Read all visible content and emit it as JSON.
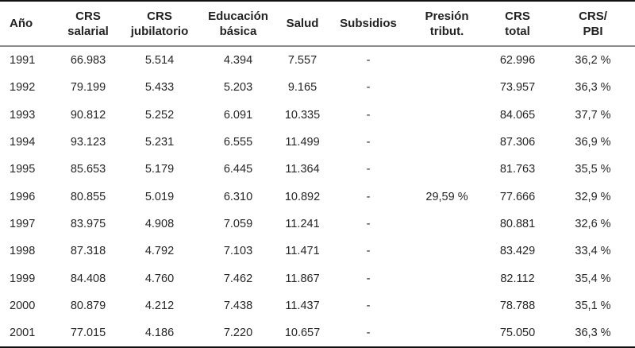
{
  "table": {
    "headers": [
      {
        "line1": "Año",
        "line2": ""
      },
      {
        "line1": "CRS",
        "line2": "salarial"
      },
      {
        "line1": "CRS",
        "line2": "jubilatorio"
      },
      {
        "line1": "Educación",
        "line2": "básica"
      },
      {
        "line1": "Salud",
        "line2": ""
      },
      {
        "line1": "Subsidios",
        "line2": ""
      },
      {
        "line1": "Presión",
        "line2": "tribut."
      },
      {
        "line1": "CRS",
        "line2": "total"
      },
      {
        "line1": "CRS/",
        "line2": "PBI"
      }
    ],
    "rows": [
      [
        "1991",
        "66.983",
        "5.514",
        "4.394",
        "7.557",
        "-",
        "",
        "62.996",
        "36,2 %"
      ],
      [
        "1992",
        "79.199",
        "5.433",
        "5.203",
        "9.165",
        "-",
        "",
        "73.957",
        "36,3 %"
      ],
      [
        "1993",
        "90.812",
        "5.252",
        "6.091",
        "10.335",
        "-",
        "",
        "84.065",
        "37,7 %"
      ],
      [
        "1994",
        "93.123",
        "5.231",
        "6.555",
        "11.499",
        "-",
        "",
        "87.306",
        "36,9 %"
      ],
      [
        "1995",
        "85.653",
        "5.179",
        "6.445",
        "11.364",
        "-",
        "",
        "81.763",
        "35,5 %"
      ],
      [
        "1996",
        "80.855",
        "5.019",
        "6.310",
        "10.892",
        "-",
        "29,59 %",
        "77.666",
        "32,9 %"
      ],
      [
        "1997",
        "83.975",
        "4.908",
        "7.059",
        "11.241",
        "-",
        "",
        "80.881",
        "32,6 %"
      ],
      [
        "1998",
        "87.318",
        "4.792",
        "7.103",
        "11.471",
        "-",
        "",
        "83.429",
        "33,4 %"
      ],
      [
        "1999",
        "84.408",
        "4.760",
        "7.462",
        "11.867",
        "-",
        "",
        "82.112",
        "35,4 %"
      ],
      [
        "2000",
        "80.879",
        "4.212",
        "7.438",
        "11.437",
        "-",
        "",
        "78.788",
        "35,1 %"
      ],
      [
        "2001",
        "77.015",
        "4.186",
        "7.220",
        "10.657",
        "-",
        "",
        "75.050",
        "36,3 %"
      ]
    ]
  }
}
